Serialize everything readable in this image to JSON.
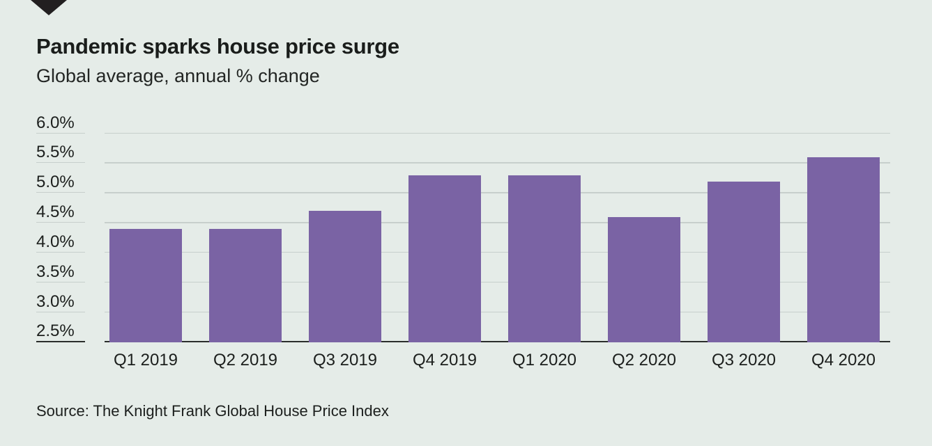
{
  "header": {
    "title": "Pandemic sparks house price surge",
    "subtitle": "Global average, annual % change"
  },
  "footer": {
    "source": "Source: The Knight Frank Global House Price Index"
  },
  "logo": {
    "icon": "down-triangle"
  },
  "chart_data": {
    "type": "bar",
    "title": "Pandemic sparks house price surge",
    "subtitle": "Global average, annual % change",
    "categories": [
      "Q1 2019",
      "Q2 2019",
      "Q3 2019",
      "Q4 2019",
      "Q1 2020",
      "Q2 2020",
      "Q3 2020",
      "Q4 2020"
    ],
    "values": [
      4.4,
      4.4,
      4.7,
      5.3,
      5.3,
      4.6,
      5.2,
      5.6
    ],
    "xlabel": "",
    "ylabel": "annual % change",
    "ylim": [
      2.5,
      6.0
    ],
    "ytick_step": 0.5,
    "yticks": [
      "6.0%",
      "5.5%",
      "5.0%",
      "4.5%",
      "4.0%",
      "3.5%",
      "3.0%",
      "2.5%"
    ],
    "grid": true,
    "legend": "none",
    "source": "Source: The Knight Frank Global House Price Index"
  },
  "colors": {
    "background": "#e5ece8",
    "bar": "#7a63a4",
    "gridline": "#c7cfcc",
    "axis": "#2a2d2b",
    "text": "#1c1f1d",
    "logo": "#221f20"
  }
}
